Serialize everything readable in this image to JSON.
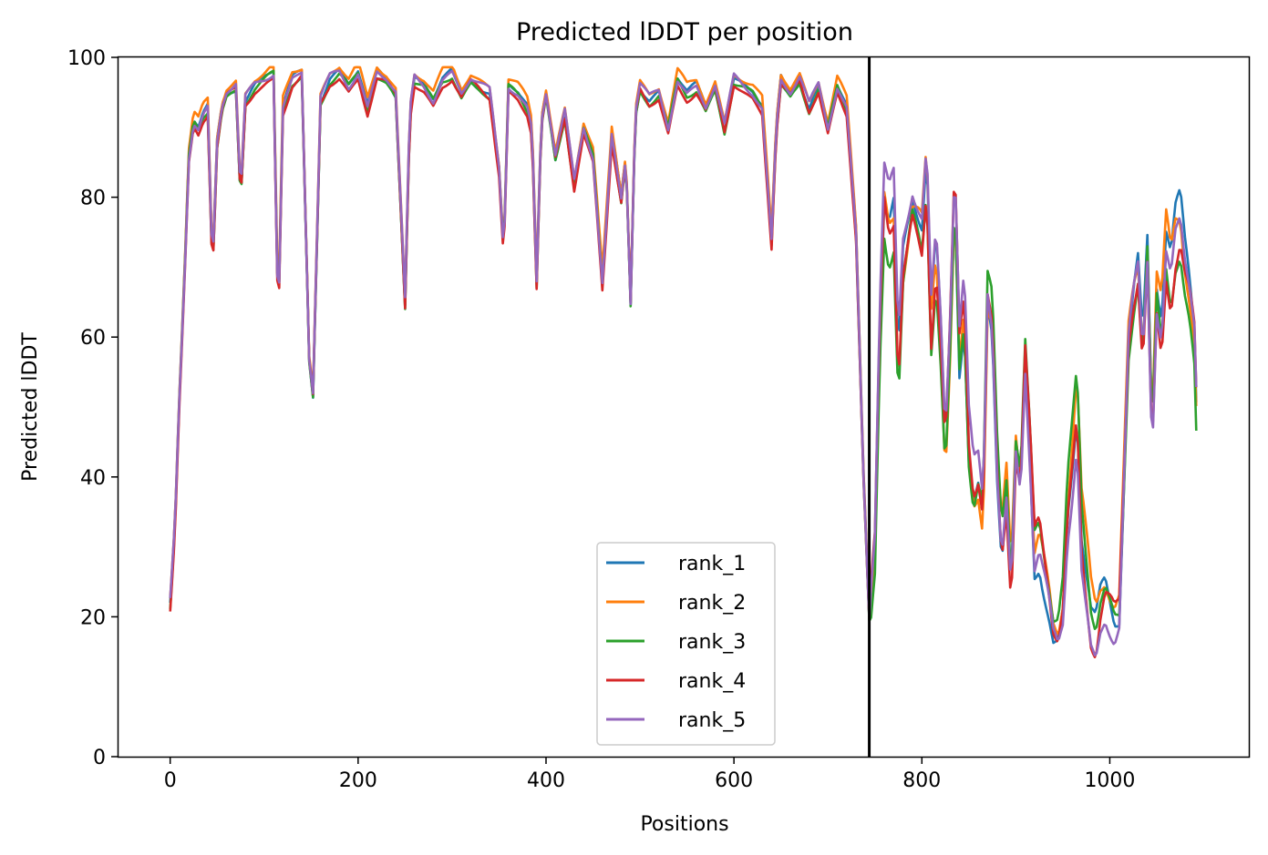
{
  "chart_data": {
    "type": "line",
    "title": "Predicted lDDT per position",
    "xlabel": "Positions",
    "ylabel": "Predicted lDDT",
    "xlim": [
      -55,
      1148
    ],
    "ylim": [
      0,
      100
    ],
    "xticks": [
      0,
      200,
      400,
      600,
      800,
      1000
    ],
    "yticks": [
      0,
      20,
      40,
      60,
      80,
      100
    ],
    "grid": false,
    "legend_position": "lower-center",
    "vline": 744,
    "colors": [
      "#1f77b4",
      "#ff7f0e",
      "#2ca02c",
      "#d62728",
      "#9467bd"
    ],
    "base_profile": [
      [
        0,
        22
      ],
      [
        5,
        33
      ],
      [
        10,
        52
      ],
      [
        15,
        68
      ],
      [
        20,
        86
      ],
      [
        25,
        91
      ],
      [
        30,
        90
      ],
      [
        35,
        92
      ],
      [
        40,
        93
      ],
      [
        45,
        70
      ],
      [
        50,
        88
      ],
      [
        55,
        93
      ],
      [
        60,
        95
      ],
      [
        70,
        96
      ],
      [
        75,
        80
      ],
      [
        80,
        94
      ],
      [
        90,
        96
      ],
      [
        100,
        97
      ],
      [
        110,
        98
      ],
      [
        115,
        62
      ],
      [
        120,
        93
      ],
      [
        130,
        97
      ],
      [
        140,
        98
      ],
      [
        148,
        57
      ],
      [
        152,
        52
      ],
      [
        160,
        94
      ],
      [
        170,
        97
      ],
      [
        180,
        98
      ],
      [
        190,
        96
      ],
      [
        200,
        98
      ],
      [
        210,
        93
      ],
      [
        220,
        98
      ],
      [
        230,
        97
      ],
      [
        240,
        95
      ],
      [
        250,
        65
      ],
      [
        255,
        92
      ],
      [
        260,
        97
      ],
      [
        270,
        96
      ],
      [
        280,
        94
      ],
      [
        290,
        97
      ],
      [
        300,
        98
      ],
      [
        310,
        95
      ],
      [
        320,
        97
      ],
      [
        330,
        96
      ],
      [
        340,
        95
      ],
      [
        350,
        84
      ],
      [
        355,
        72
      ],
      [
        360,
        96
      ],
      [
        370,
        95
      ],
      [
        380,
        93
      ],
      [
        385,
        90
      ],
      [
        390,
        68
      ],
      [
        395,
        91
      ],
      [
        400,
        95
      ],
      [
        410,
        86
      ],
      [
        420,
        92
      ],
      [
        430,
        82
      ],
      [
        440,
        90
      ],
      [
        450,
        86
      ],
      [
        460,
        68
      ],
      [
        470,
        89
      ],
      [
        480,
        80
      ],
      [
        485,
        86
      ],
      [
        490,
        65
      ],
      [
        495,
        92
      ],
      [
        500,
        96
      ],
      [
        510,
        94
      ],
      [
        520,
        95
      ],
      [
        530,
        90
      ],
      [
        540,
        97
      ],
      [
        550,
        95
      ],
      [
        560,
        96
      ],
      [
        570,
        93
      ],
      [
        580,
        96
      ],
      [
        590,
        90
      ],
      [
        600,
        97
      ],
      [
        610,
        96
      ],
      [
        620,
        95
      ],
      [
        630,
        93
      ],
      [
        640,
        74
      ],
      [
        645,
        90
      ],
      [
        650,
        97
      ],
      [
        660,
        95
      ],
      [
        670,
        97
      ],
      [
        680,
        93
      ],
      [
        690,
        96
      ],
      [
        700,
        90
      ],
      [
        710,
        96
      ],
      [
        720,
        93
      ],
      [
        730,
        75
      ],
      [
        738,
        40
      ],
      [
        744,
        20
      ],
      [
        750,
        30
      ],
      [
        755,
        60
      ],
      [
        760,
        80
      ],
      [
        765,
        76
      ],
      [
        770,
        78
      ],
      [
        775,
        55
      ],
      [
        780,
        70
      ],
      [
        790,
        78
      ],
      [
        800,
        74
      ],
      [
        805,
        84
      ],
      [
        810,
        62
      ],
      [
        815,
        72
      ],
      [
        820,
        60
      ],
      [
        825,
        44
      ],
      [
        830,
        60
      ],
      [
        835,
        82
      ],
      [
        840,
        58
      ],
      [
        845,
        65
      ],
      [
        850,
        45
      ],
      [
        855,
        38
      ],
      [
        860,
        40
      ],
      [
        865,
        35
      ],
      [
        870,
        66
      ],
      [
        875,
        62
      ],
      [
        880,
        42
      ],
      [
        885,
        30
      ],
      [
        890,
        38
      ],
      [
        895,
        25
      ],
      [
        900,
        45
      ],
      [
        905,
        40
      ],
      [
        910,
        58
      ],
      [
        915,
        45
      ],
      [
        920,
        30
      ],
      [
        925,
        32
      ],
      [
        930,
        28
      ],
      [
        935,
        24
      ],
      [
        940,
        19
      ],
      [
        945,
        18
      ],
      [
        950,
        22
      ],
      [
        955,
        35
      ],
      [
        960,
        42
      ],
      [
        965,
        50
      ],
      [
        970,
        32
      ],
      [
        975,
        26
      ],
      [
        980,
        20
      ],
      [
        985,
        18
      ],
      [
        990,
        22
      ],
      [
        995,
        24
      ],
      [
        1000,
        22
      ],
      [
        1005,
        20
      ],
      [
        1010,
        21
      ],
      [
        1015,
        40
      ],
      [
        1020,
        60
      ],
      [
        1025,
        66
      ],
      [
        1030,
        70
      ],
      [
        1035,
        58
      ],
      [
        1040,
        72
      ],
      [
        1045,
        45
      ],
      [
        1050,
        65
      ],
      [
        1055,
        60
      ],
      [
        1060,
        72
      ],
      [
        1065,
        68
      ],
      [
        1070,
        74
      ],
      [
        1075,
        76
      ],
      [
        1080,
        70
      ],
      [
        1085,
        66
      ],
      [
        1090,
        60
      ],
      [
        1093,
        46
      ]
    ],
    "series": [
      {
        "name": "rank_1",
        "offset": 0.0,
        "variation": [
          0.0,
          0.6,
          3.5,
          2.5
        ]
      },
      {
        "name": "rank_2",
        "offset": 0.8,
        "variation": [
          1.3,
          1.7,
          4.5,
          1.9
        ]
      },
      {
        "name": "rank_3",
        "offset": -0.6,
        "variation": [
          2.6,
          2.3,
          4.0,
          3.3
        ]
      },
      {
        "name": "rank_4",
        "offset": -0.9,
        "variation": [
          3.9,
          0.9,
          3.8,
          0.7
        ]
      },
      {
        "name": "rank_5",
        "offset": 0.0,
        "variation": [
          5.2,
          2.9,
          3.0,
          4.1
        ]
      }
    ]
  }
}
